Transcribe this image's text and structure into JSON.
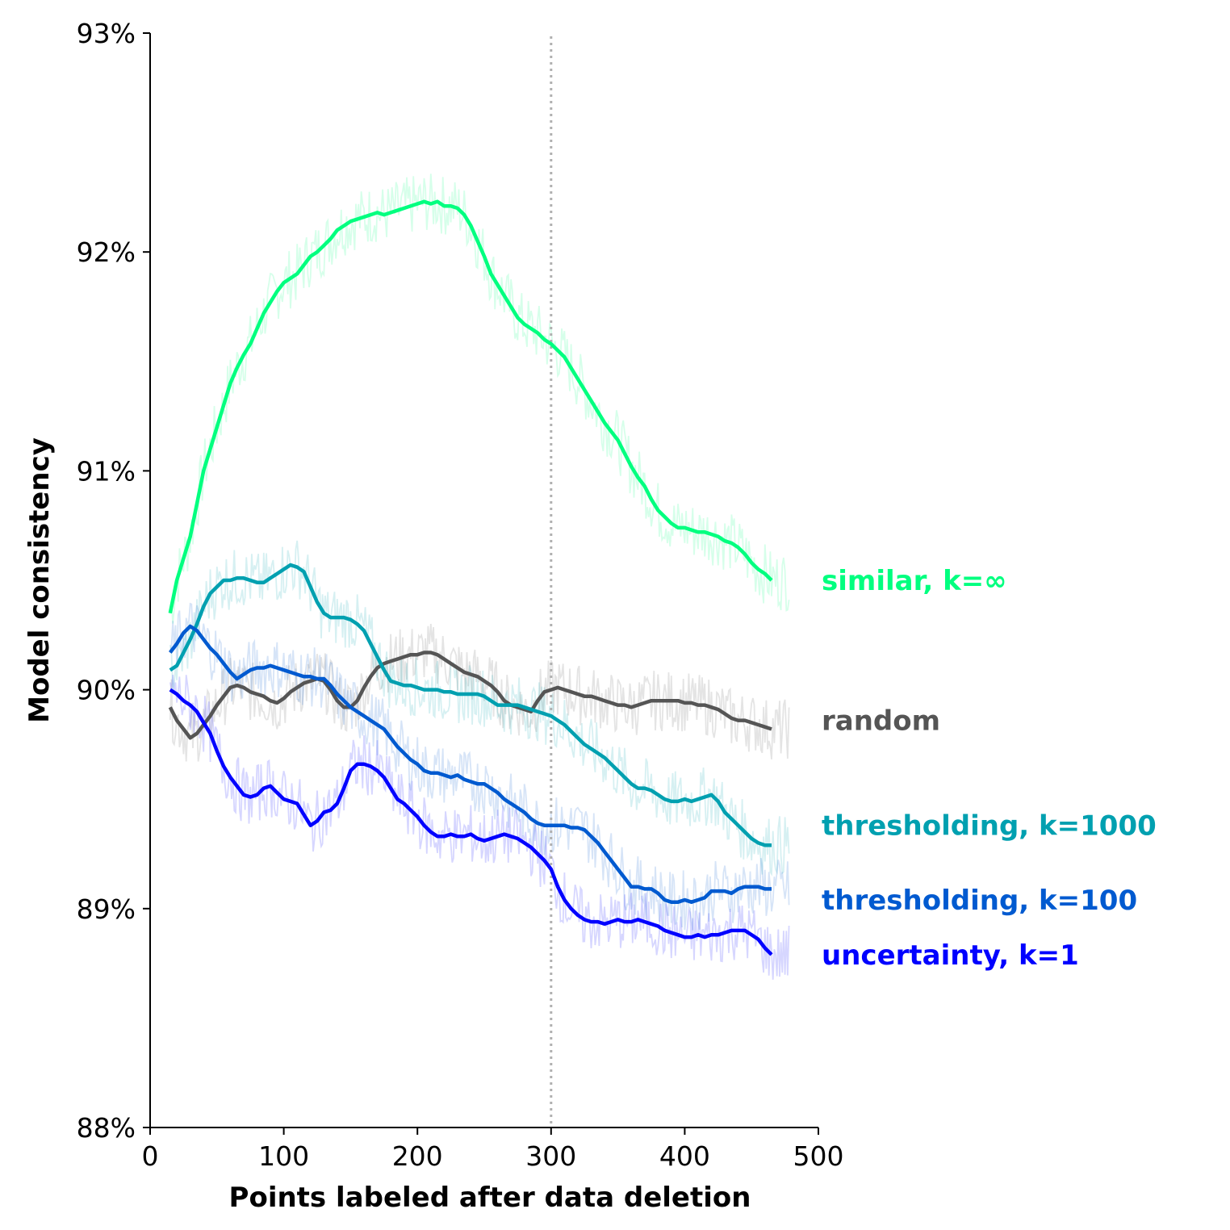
{
  "chart_data": {
    "type": "line",
    "title": "",
    "xlabel": "Points labeled after data deletion",
    "ylabel": "Model consistency",
    "xlim": [
      0,
      500
    ],
    "ylim": [
      88,
      93
    ],
    "x_ticks": [
      0,
      100,
      200,
      300,
      400,
      500
    ],
    "x_tick_labels": [
      "0",
      "100",
      "200",
      "300",
      "400",
      "500"
    ],
    "y_ticks": [
      88,
      89,
      90,
      91,
      92,
      93
    ],
    "y_tick_labels": [
      "88%",
      "89%",
      "90%",
      "91%",
      "92%",
      "93%"
    ],
    "reference_line": {
      "x": 300,
      "style": "dotted",
      "color": "#b0b0b0"
    },
    "grid": false,
    "legend": "inline labels at right end of lines",
    "series": [
      {
        "name": "similar, k=∞",
        "color": "#00ff7f",
        "x": [
          15,
          20,
          25,
          30,
          35,
          40,
          45,
          50,
          55,
          60,
          65,
          70,
          75,
          80,
          85,
          90,
          95,
          100,
          105,
          110,
          115,
          120,
          125,
          130,
          135,
          140,
          145,
          150,
          155,
          160,
          165,
          170,
          175,
          180,
          185,
          190,
          195,
          200,
          205,
          210,
          215,
          220,
          225,
          230,
          235,
          240,
          245,
          250,
          255,
          260,
          265,
          270,
          275,
          280,
          285,
          290,
          295,
          300,
          305,
          310,
          315,
          320,
          325,
          330,
          335,
          340,
          345,
          350,
          355,
          360,
          365,
          370,
          375,
          380,
          385,
          390,
          395,
          400,
          405,
          410,
          415,
          420,
          425,
          430,
          435,
          440,
          445,
          450,
          455,
          460,
          465
        ],
        "y": [
          90.35,
          90.5,
          90.6,
          90.7,
          90.85,
          91.0,
          91.1,
          91.2,
          91.3,
          91.4,
          91.47,
          91.53,
          91.58,
          91.65,
          91.72,
          91.77,
          91.82,
          91.86,
          91.88,
          91.9,
          91.94,
          91.98,
          92.0,
          92.03,
          92.06,
          92.1,
          92.12,
          92.14,
          92.15,
          92.16,
          92.17,
          92.18,
          92.17,
          92.18,
          92.19,
          92.2,
          92.21,
          92.22,
          92.23,
          92.22,
          92.23,
          92.21,
          92.21,
          92.2,
          92.17,
          92.12,
          92.05,
          91.98,
          91.9,
          91.85,
          91.8,
          91.75,
          91.7,
          91.67,
          91.65,
          91.63,
          91.6,
          91.58,
          91.55,
          91.52,
          91.47,
          91.42,
          91.37,
          91.32,
          91.27,
          91.22,
          91.18,
          91.14,
          91.08,
          91.02,
          90.97,
          90.93,
          90.87,
          90.82,
          90.79,
          90.76,
          90.74,
          90.74,
          90.73,
          90.72,
          90.72,
          90.71,
          90.7,
          90.68,
          90.67,
          90.65,
          90.62,
          90.58,
          90.55,
          90.53,
          90.5
        ]
      },
      {
        "name": "random",
        "color": "#555555",
        "x": [
          15,
          20,
          25,
          30,
          35,
          40,
          45,
          50,
          55,
          60,
          65,
          70,
          75,
          80,
          85,
          90,
          95,
          100,
          105,
          110,
          115,
          120,
          125,
          130,
          135,
          140,
          145,
          150,
          155,
          160,
          165,
          170,
          175,
          180,
          185,
          190,
          195,
          200,
          205,
          210,
          215,
          220,
          225,
          230,
          235,
          240,
          245,
          250,
          255,
          260,
          265,
          270,
          275,
          280,
          285,
          290,
          295,
          300,
          305,
          310,
          315,
          320,
          325,
          330,
          335,
          340,
          345,
          350,
          355,
          360,
          365,
          370,
          375,
          380,
          385,
          390,
          395,
          400,
          405,
          410,
          415,
          420,
          425,
          430,
          435,
          440,
          445,
          450,
          455,
          460,
          465
        ],
        "y": [
          89.92,
          89.86,
          89.82,
          89.78,
          89.8,
          89.84,
          89.88,
          89.93,
          89.97,
          90.01,
          90.02,
          90.01,
          89.99,
          89.98,
          89.97,
          89.95,
          89.94,
          89.96,
          89.99,
          90.01,
          90.03,
          90.04,
          90.05,
          90.04,
          90.0,
          89.95,
          89.92,
          89.92,
          89.95,
          90.01,
          90.06,
          90.1,
          90.12,
          90.13,
          90.14,
          90.15,
          90.16,
          90.16,
          90.17,
          90.17,
          90.16,
          90.14,
          90.12,
          90.1,
          90.08,
          90.07,
          90.06,
          90.04,
          90.02,
          89.99,
          89.95,
          89.93,
          89.92,
          89.91,
          89.9,
          89.95,
          89.99,
          90.0,
          90.01,
          90.0,
          89.99,
          89.98,
          89.97,
          89.97,
          89.96,
          89.95,
          89.94,
          89.93,
          89.93,
          89.92,
          89.93,
          89.94,
          89.95,
          89.95,
          89.95,
          89.95,
          89.95,
          89.94,
          89.94,
          89.93,
          89.93,
          89.92,
          89.91,
          89.89,
          89.87,
          89.86,
          89.86,
          89.85,
          89.84,
          89.83,
          89.82
        ]
      },
      {
        "name": "thresholding, k=1000",
        "color": "#00a0b0",
        "x": [
          15,
          20,
          25,
          30,
          35,
          40,
          45,
          50,
          55,
          60,
          65,
          70,
          75,
          80,
          85,
          90,
          95,
          100,
          105,
          110,
          115,
          120,
          125,
          130,
          135,
          140,
          145,
          150,
          155,
          160,
          165,
          170,
          175,
          180,
          185,
          190,
          195,
          200,
          205,
          210,
          215,
          220,
          225,
          230,
          235,
          240,
          245,
          250,
          255,
          260,
          265,
          270,
          275,
          280,
          285,
          290,
          295,
          300,
          305,
          310,
          315,
          320,
          325,
          330,
          335,
          340,
          345,
          350,
          355,
          360,
          365,
          370,
          375,
          380,
          385,
          390,
          395,
          400,
          405,
          410,
          415,
          420,
          425,
          430,
          435,
          440,
          445,
          450,
          455,
          460,
          465
        ],
        "y": [
          90.09,
          90.11,
          90.17,
          90.23,
          90.3,
          90.38,
          90.44,
          90.47,
          90.5,
          90.5,
          90.51,
          90.51,
          90.5,
          90.49,
          90.49,
          90.51,
          90.53,
          90.55,
          90.57,
          90.56,
          90.54,
          90.47,
          90.4,
          90.35,
          90.33,
          90.33,
          90.33,
          90.32,
          90.3,
          90.27,
          90.21,
          90.15,
          90.09,
          90.04,
          90.03,
          90.02,
          90.02,
          90.01,
          90.0,
          90.0,
          90.0,
          89.99,
          89.99,
          89.98,
          89.98,
          89.98,
          89.98,
          89.97,
          89.95,
          89.93,
          89.93,
          89.93,
          89.93,
          89.92,
          89.91,
          89.9,
          89.89,
          89.88,
          89.86,
          89.84,
          89.81,
          89.78,
          89.75,
          89.73,
          89.71,
          89.69,
          89.66,
          89.63,
          89.6,
          89.57,
          89.55,
          89.55,
          89.54,
          89.52,
          89.5,
          89.49,
          89.49,
          89.5,
          89.49,
          89.5,
          89.51,
          89.52,
          89.49,
          89.44,
          89.41,
          89.38,
          89.35,
          89.32,
          89.3,
          89.29,
          89.29
        ]
      },
      {
        "name": "thresholding, k=100",
        "color": "#005ad0",
        "x": [
          15,
          20,
          25,
          30,
          35,
          40,
          45,
          50,
          55,
          60,
          65,
          70,
          75,
          80,
          85,
          90,
          95,
          100,
          105,
          110,
          115,
          120,
          125,
          130,
          135,
          140,
          145,
          150,
          155,
          160,
          165,
          170,
          175,
          180,
          185,
          190,
          195,
          200,
          205,
          210,
          215,
          220,
          225,
          230,
          235,
          240,
          245,
          250,
          255,
          260,
          265,
          270,
          275,
          280,
          285,
          290,
          295,
          300,
          305,
          310,
          315,
          320,
          325,
          330,
          335,
          340,
          345,
          350,
          355,
          360,
          365,
          370,
          375,
          380,
          385,
          390,
          395,
          400,
          405,
          410,
          415,
          420,
          425,
          430,
          435,
          440,
          445,
          450,
          455,
          460,
          465
        ],
        "y": [
          90.17,
          90.21,
          90.26,
          90.29,
          90.27,
          90.23,
          90.19,
          90.16,
          90.12,
          90.08,
          90.05,
          90.07,
          90.09,
          90.1,
          90.1,
          90.11,
          90.1,
          90.09,
          90.08,
          90.07,
          90.06,
          90.06,
          90.05,
          90.05,
          90.02,
          89.98,
          89.95,
          89.92,
          89.9,
          89.88,
          89.86,
          89.84,
          89.82,
          89.78,
          89.74,
          89.71,
          89.68,
          89.66,
          89.63,
          89.62,
          89.62,
          89.61,
          89.6,
          89.61,
          89.59,
          89.58,
          89.57,
          89.57,
          89.55,
          89.53,
          89.5,
          89.48,
          89.46,
          89.44,
          89.41,
          89.39,
          89.38,
          89.38,
          89.38,
          89.38,
          89.37,
          89.37,
          89.36,
          89.33,
          89.3,
          89.26,
          89.22,
          89.18,
          89.14,
          89.1,
          89.1,
          89.09,
          89.09,
          89.07,
          89.04,
          89.03,
          89.03,
          89.04,
          89.03,
          89.04,
          89.05,
          89.08,
          89.08,
          89.08,
          89.07,
          89.09,
          89.1,
          89.1,
          89.1,
          89.09,
          89.09
        ]
      },
      {
        "name": "uncertainty, k=1",
        "color": "#0000ff",
        "x": [
          15,
          20,
          25,
          30,
          35,
          40,
          45,
          50,
          55,
          60,
          65,
          70,
          75,
          80,
          85,
          90,
          95,
          100,
          105,
          110,
          115,
          120,
          125,
          130,
          135,
          140,
          145,
          150,
          155,
          160,
          165,
          170,
          175,
          180,
          185,
          190,
          195,
          200,
          205,
          210,
          215,
          220,
          225,
          230,
          235,
          240,
          245,
          250,
          255,
          260,
          265,
          270,
          275,
          280,
          285,
          290,
          295,
          300,
          305,
          310,
          315,
          320,
          325,
          330,
          335,
          340,
          345,
          350,
          355,
          360,
          365,
          370,
          375,
          380,
          385,
          390,
          395,
          400,
          405,
          410,
          415,
          420,
          425,
          430,
          435,
          440,
          445,
          450,
          455,
          460,
          465
        ],
        "y": [
          90.0,
          89.98,
          89.95,
          89.93,
          89.9,
          89.85,
          89.8,
          89.72,
          89.65,
          89.6,
          89.56,
          89.52,
          89.51,
          89.52,
          89.55,
          89.56,
          89.53,
          89.5,
          89.49,
          89.48,
          89.43,
          89.38,
          89.4,
          89.44,
          89.45,
          89.48,
          89.55,
          89.63,
          89.66,
          89.66,
          89.65,
          89.63,
          89.6,
          89.55,
          89.5,
          89.48,
          89.45,
          89.42,
          89.38,
          89.35,
          89.33,
          89.33,
          89.34,
          89.33,
          89.33,
          89.34,
          89.32,
          89.31,
          89.32,
          89.33,
          89.34,
          89.33,
          89.32,
          89.3,
          89.28,
          89.25,
          89.22,
          89.18,
          89.1,
          89.04,
          89.0,
          88.97,
          88.95,
          88.94,
          88.94,
          88.93,
          88.94,
          88.95,
          88.94,
          88.94,
          88.95,
          88.94,
          88.93,
          88.92,
          88.9,
          88.89,
          88.88,
          88.87,
          88.87,
          88.88,
          88.87,
          88.88,
          88.88,
          88.89,
          88.9,
          88.9,
          88.9,
          88.88,
          88.86,
          88.82,
          88.79
        ]
      }
    ]
  }
}
